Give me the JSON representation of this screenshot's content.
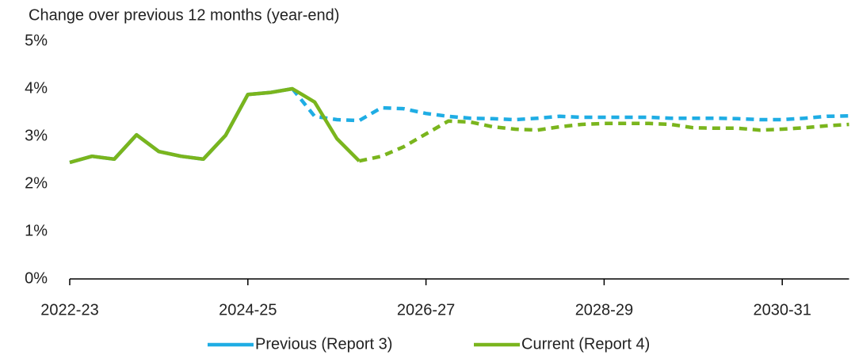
{
  "chart_data": {
    "type": "line",
    "title": "Change over previous 12 months (year-end)",
    "categories": [
      "2022-23",
      null,
      null,
      null,
      null,
      null,
      null,
      null,
      "2024-25",
      null,
      null,
      null,
      null,
      null,
      null,
      null,
      "2026-27",
      null,
      null,
      null,
      null,
      null,
      null,
      null,
      "2028-29",
      null,
      null,
      null,
      null,
      null,
      null,
      null,
      "2030-31",
      null,
      null,
      null
    ],
    "series": [
      {
        "name": "Previous (Report 3)",
        "color": "#1fade4",
        "dash_from": 10,
        "values": [
          2.45,
          2.58,
          2.52,
          3.03,
          2.68,
          2.58,
          2.52,
          3.02,
          3.88,
          3.92,
          4.0,
          3.42,
          3.35,
          3.33,
          3.6,
          3.58,
          3.48,
          3.42,
          3.38,
          3.37,
          3.35,
          3.38,
          3.42,
          3.4,
          3.4,
          3.4,
          3.4,
          3.38,
          3.38,
          3.38,
          3.37,
          3.35,
          3.35,
          3.38,
          3.42,
          3.43
        ]
      },
      {
        "name": "Current (Report 4)",
        "color": "#7ab51d",
        "dash_from": 13,
        "values": [
          2.45,
          2.58,
          2.52,
          3.03,
          2.68,
          2.58,
          2.52,
          3.02,
          3.88,
          3.92,
          4.0,
          3.72,
          2.95,
          2.48,
          2.58,
          2.78,
          3.05,
          3.32,
          3.3,
          3.2,
          3.15,
          3.13,
          3.2,
          3.25,
          3.27,
          3.27,
          3.27,
          3.25,
          3.18,
          3.17,
          3.17,
          3.13,
          3.15,
          3.18,
          3.22,
          3.25
        ]
      }
    ],
    "ylim": [
      0,
      5
    ],
    "yticks": [
      {
        "value": 0,
        "label": "0%"
      },
      {
        "value": 1,
        "label": "1%"
      },
      {
        "value": 2,
        "label": "2%"
      },
      {
        "value": 3,
        "label": "3%"
      },
      {
        "value": 4,
        "label": "4%"
      },
      {
        "value": 5,
        "label": "5%"
      }
    ],
    "grid": false,
    "legend": "bottom"
  }
}
